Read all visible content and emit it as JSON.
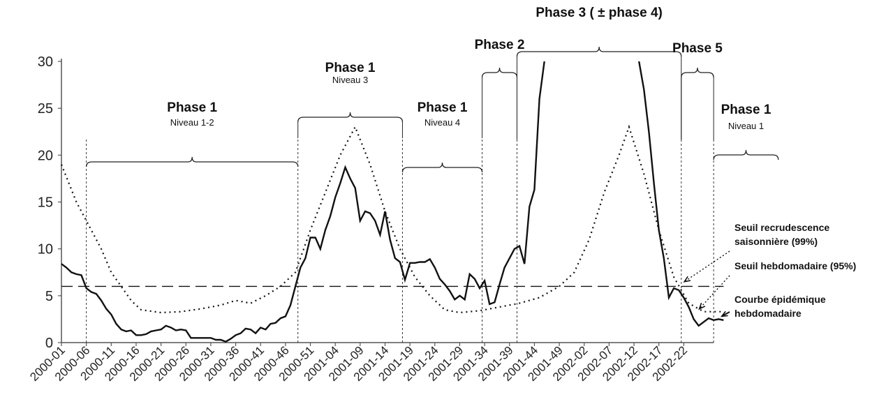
{
  "chart_data": {
    "type": "line",
    "title": "",
    "xlabel": "",
    "ylabel": "",
    "ylim": [
      0,
      30
    ],
    "y_ticks": [
      "0",
      "5",
      "10",
      "15",
      "20",
      "25",
      "30"
    ],
    "x_tick_labels": [
      "2000-01",
      "2000-06",
      "2000-11",
      "2000-16",
      "2000-21",
      "2000-26",
      "2000-31",
      "2000-36",
      "2000-41",
      "2000-46",
      "2000-51",
      "2001-04",
      "2001-09",
      "2001-14",
      "2001-19",
      "2001-24",
      "2001-29",
      "2001-34",
      "2001-39",
      "2001-44",
      "2001-49",
      "2002-02",
      "2002-07",
      "2002-12",
      "2002-17",
      "2002-22"
    ],
    "x_range": [
      0,
      130
    ],
    "grid": false,
    "series": [
      {
        "name": "Courbe épidémique hebdomadaire",
        "style": "solid",
        "segments": [
          [
            [
              0,
              8.4
            ],
            [
              1,
              8.0
            ],
            [
              2,
              7.5
            ],
            [
              3,
              7.3
            ],
            [
              4,
              7.2
            ],
            [
              5,
              5.8
            ],
            [
              6,
              5.4
            ],
            [
              7,
              5.2
            ],
            [
              8,
              4.5
            ],
            [
              9,
              3.6
            ],
            [
              10,
              3.0
            ],
            [
              11,
              2.0
            ],
            [
              12,
              1.4
            ],
            [
              13,
              1.2
            ],
            [
              14,
              1.3
            ],
            [
              15,
              0.8
            ],
            [
              16,
              0.8
            ],
            [
              17,
              0.9
            ],
            [
              18,
              1.2
            ],
            [
              19,
              1.3
            ],
            [
              20,
              1.4
            ],
            [
              21,
              1.8
            ],
            [
              22,
              1.6
            ],
            [
              23,
              1.3
            ],
            [
              24,
              1.4
            ],
            [
              25,
              1.3
            ],
            [
              26,
              0.5
            ],
            [
              27,
              0.5
            ],
            [
              28,
              0.5
            ],
            [
              29,
              0.5
            ],
            [
              30,
              0.5
            ],
            [
              31,
              0.3
            ],
            [
              32,
              0.3
            ],
            [
              33,
              0.1
            ],
            [
              34,
              0.4
            ],
            [
              35,
              0.8
            ],
            [
              36,
              1.0
            ],
            [
              37,
              1.5
            ],
            [
              38,
              1.4
            ],
            [
              39,
              1.0
            ],
            [
              40,
              1.6
            ],
            [
              41,
              1.4
            ],
            [
              42,
              2.0
            ],
            [
              43,
              2.1
            ],
            [
              44,
              2.6
            ],
            [
              45,
              2.8
            ],
            [
              46,
              4.0
            ],
            [
              47,
              6.0
            ],
            [
              48,
              8.0
            ],
            [
              49,
              9.0
            ],
            [
              50,
              11.2
            ],
            [
              51,
              11.2
            ],
            [
              52,
              10.0
            ],
            [
              53,
              12.0
            ],
            [
              54,
              13.5
            ],
            [
              55,
              15.5
            ],
            [
              56,
              17.0
            ],
            [
              57,
              18.7
            ],
            [
              58,
              17.5
            ],
            [
              59,
              16.5
            ],
            [
              60,
              13.0
            ],
            [
              61,
              14.0
            ],
            [
              62,
              13.8
            ],
            [
              63,
              13.0
            ],
            [
              64,
              11.5
            ],
            [
              65,
              14.0
            ],
            [
              66,
              11.0
            ],
            [
              67,
              9.0
            ],
            [
              68,
              8.6
            ],
            [
              69,
              6.7
            ],
            [
              70,
              8.5
            ],
            [
              71,
              8.5
            ],
            [
              72,
              8.6
            ],
            [
              73,
              8.6
            ],
            [
              74,
              8.9
            ],
            [
              75,
              8.0
            ],
            [
              76,
              6.8
            ],
            [
              77,
              6.2
            ],
            [
              78,
              5.5
            ],
            [
              79,
              4.6
            ],
            [
              80,
              5.0
            ],
            [
              81,
              4.6
            ],
            [
              82,
              7.3
            ],
            [
              83,
              6.8
            ],
            [
              84,
              5.8
            ],
            [
              85,
              6.6
            ],
            [
              86,
              4.1
            ],
            [
              87,
              4.3
            ],
            [
              88,
              6.2
            ],
            [
              89,
              8.0
            ],
            [
              90,
              9.0
            ],
            [
              91,
              10.0
            ],
            [
              92,
              10.3
            ],
            [
              93,
              8.4
            ],
            [
              94,
              14.5
            ],
            [
              95,
              16.3
            ],
            [
              96,
              26.0
            ],
            [
              97,
              30.0
            ]
          ],
          [
            [
              116,
              30.0
            ],
            [
              117,
              27.0
            ],
            [
              118,
              22.5
            ],
            [
              119,
              17.0
            ],
            [
              120,
              12.0
            ],
            [
              121,
              9.0
            ],
            [
              122,
              4.8
            ],
            [
              123,
              5.8
            ],
            [
              124,
              5.6
            ],
            [
              125,
              4.8
            ],
            [
              126,
              3.8
            ],
            [
              127,
              2.5
            ],
            [
              128,
              1.8
            ],
            [
              129,
              2.2
            ],
            [
              130,
              2.6
            ],
            [
              131,
              2.4
            ],
            [
              132,
              2.5
            ],
            [
              133,
              2.4
            ]
          ]
        ]
      },
      {
        "name": "Seuil recrudescence saisonnière (99%)",
        "style": "dotted",
        "points": [
          [
            0,
            19.0
          ],
          [
            3,
            15.0
          ],
          [
            5,
            13.0
          ],
          [
            8,
            10.0
          ],
          [
            10,
            7.5
          ],
          [
            12,
            6.0
          ],
          [
            14,
            4.5
          ],
          [
            16,
            3.5
          ],
          [
            20,
            3.2
          ],
          [
            24,
            3.3
          ],
          [
            28,
            3.6
          ],
          [
            32,
            4.0
          ],
          [
            35,
            4.5
          ],
          [
            38,
            4.2
          ],
          [
            41,
            5.0
          ],
          [
            44,
            6.0
          ],
          [
            47,
            7.5
          ],
          [
            50,
            12.0
          ],
          [
            53,
            16.0
          ],
          [
            56,
            20.0
          ],
          [
            59,
            23.0
          ],
          [
            62,
            19.0
          ],
          [
            65,
            14.0
          ],
          [
            68,
            10.0
          ],
          [
            71,
            7.0
          ],
          [
            74,
            5.0
          ],
          [
            77,
            3.5
          ],
          [
            80,
            3.2
          ],
          [
            84,
            3.4
          ],
          [
            88,
            3.8
          ],
          [
            92,
            4.2
          ],
          [
            96,
            4.8
          ],
          [
            100,
            6.0
          ],
          [
            103,
            7.5
          ],
          [
            106,
            11.0
          ],
          [
            109,
            16.0
          ],
          [
            112,
            20.0
          ],
          [
            114,
            23.0
          ],
          [
            117,
            18.0
          ],
          [
            120,
            12.0
          ],
          [
            123,
            7.0
          ],
          [
            126,
            4.2
          ],
          [
            129,
            3.3
          ],
          [
            133,
            3.3
          ]
        ]
      },
      {
        "name": "Seuil hebdomadaire (95%)",
        "style": "dashed",
        "points": [
          [
            0,
            6.0
          ],
          [
            133,
            6.0
          ]
        ]
      }
    ],
    "phases": [
      {
        "title": "Phase 1",
        "subtitle": "Niveau 1-2",
        "start": 5,
        "end": 47.5
      },
      {
        "title": "Phase 1",
        "subtitle": "Niveau 3",
        "start": 47.5,
        "end": 68.5
      },
      {
        "title": "Phase 1",
        "subtitle": "Niveau 4",
        "start": 68.5,
        "end": 84.5
      },
      {
        "title": "Phase 2",
        "subtitle": "",
        "start": 84.5,
        "end": 91.5
      },
      {
        "title": "Phase 3 ( ± phase 4)",
        "subtitle": "",
        "start": 91.5,
        "end": 124.5
      },
      {
        "title": "Phase 5",
        "subtitle": "",
        "start": 124.5,
        "end": 131
      },
      {
        "title": "Phase 1",
        "subtitle": "Niveau 1",
        "start": 131,
        "end": 144
      }
    ],
    "annotations": [
      {
        "lines": [
          "Seuil recrudescence",
          "saisonnière (99%)"
        ]
      },
      {
        "lines": [
          "Seuil hebdomadaire (95%)"
        ]
      },
      {
        "lines": [
          "Courbe épidémique",
          "hebdomadaire"
        ]
      }
    ]
  }
}
